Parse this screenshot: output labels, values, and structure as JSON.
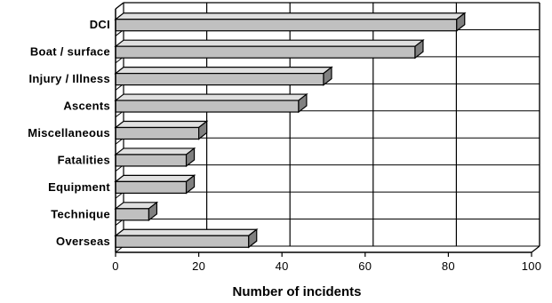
{
  "chart_data": {
    "type": "bar",
    "orientation": "horizontal",
    "style": "3d",
    "categories": [
      "DCI",
      "Boat / surface",
      "Injury / Illness",
      "Ascents",
      "Miscellaneous",
      "Fatalities",
      "Equipment",
      "Technique",
      "Overseas"
    ],
    "values": [
      82,
      72,
      50,
      44,
      20,
      17,
      17,
      8,
      32
    ],
    "xlabel": "Number of incidents",
    "ylabel": "",
    "xlim": [
      0,
      100
    ],
    "xticks": [
      "0",
      "20",
      "40",
      "60",
      "80",
      "100"
    ],
    "grid": "vertical",
    "bar_color": "#c0c0c0",
    "bar_top_color": "#e0e0e0",
    "bar_side_color": "#808080",
    "outline_color": "#000000"
  }
}
